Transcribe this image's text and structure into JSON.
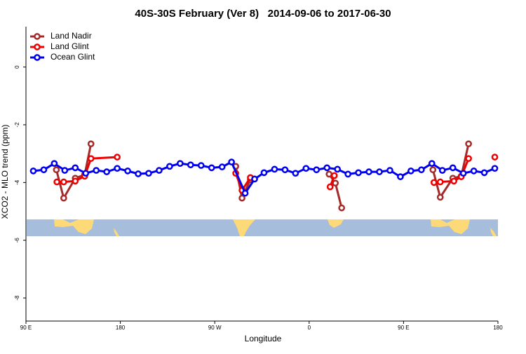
{
  "chart_data": {
    "type": "line",
    "title": "40S-30S February (Ver 8)   2014-09-06 to 2017-06-30",
    "xlabel": "Longitude",
    "ylabel": "XCO2 - MLO trend (ppm)",
    "xlim": [
      90,
      540
    ],
    "ylim": [
      -8.8,
      1.4
    ],
    "xticks": [
      {
        "value": 90,
        "label": "90 E"
      },
      {
        "value": 180,
        "label": "180"
      },
      {
        "value": 270,
        "label": "90 W"
      },
      {
        "value": 360,
        "label": "0"
      },
      {
        "value": 450,
        "label": "90 E"
      },
      {
        "value": 540,
        "label": "180"
      }
    ],
    "yticks": [
      0,
      -2,
      -4,
      -6,
      -8
    ],
    "legend": "top-left",
    "series": [
      {
        "name": "Land Nadir",
        "color": "#a52a2a",
        "x": [
          119,
          126,
          137,
          146,
          152,
          null,
          290,
          296,
          304,
          null,
          379,
          385,
          391,
          null,
          478,
          485,
          497,
          505,
          512
        ],
        "values": [
          -3.56,
          -4.54,
          -3.85,
          -3.73,
          -2.66,
          null,
          -3.44,
          -4.54,
          -3.9,
          null,
          -3.71,
          -4.02,
          -4.88,
          null,
          -3.56,
          -4.51,
          -3.85,
          -3.78,
          -2.66
        ]
      },
      {
        "name": "Land Glint",
        "color": "#ee0000",
        "x": [
          119.5,
          126,
          137,
          146,
          152,
          177,
          null,
          290,
          296,
          304,
          null,
          380,
          384,
          null,
          479,
          485,
          498,
          505,
          512,
          null,
          537
        ],
        "values": [
          -3.98,
          -3.98,
          -3.95,
          -3.78,
          -3.17,
          -3.12,
          null,
          -3.68,
          -4.27,
          -3.83,
          null,
          -4.15,
          -3.76,
          null,
          -4.0,
          -3.98,
          -3.95,
          -3.8,
          -3.17,
          null,
          -3.12
        ]
      },
      {
        "name": "Ocean Glint",
        "color": "#0000ee",
        "x": [
          97,
          107,
          117,
          127,
          137,
          147,
          157,
          167,
          177,
          187,
          197,
          207,
          217,
          227,
          237,
          247,
          257,
          267,
          277,
          286,
          299,
          308,
          317,
          327,
          337,
          347,
          357,
          367,
          377,
          387,
          397,
          407,
          417,
          427,
          437,
          447,
          457,
          467,
          477,
          487,
          497,
          507,
          517,
          527,
          537
        ],
        "values": [
          -3.6,
          -3.56,
          -3.34,
          -3.58,
          -3.49,
          -3.68,
          -3.58,
          -3.63,
          -3.51,
          -3.6,
          -3.7,
          -3.68,
          -3.58,
          -3.44,
          -3.34,
          -3.39,
          -3.41,
          -3.49,
          -3.46,
          -3.29,
          -4.37,
          -3.88,
          -3.66,
          -3.54,
          -3.56,
          -3.68,
          -3.51,
          -3.56,
          -3.49,
          -3.54,
          -3.71,
          -3.66,
          -3.63,
          -3.63,
          -3.58,
          -3.8,
          -3.6,
          -3.56,
          -3.34,
          -3.58,
          -3.49,
          -3.68,
          -3.6,
          -3.66,
          -3.51
        ]
      }
    ]
  }
}
